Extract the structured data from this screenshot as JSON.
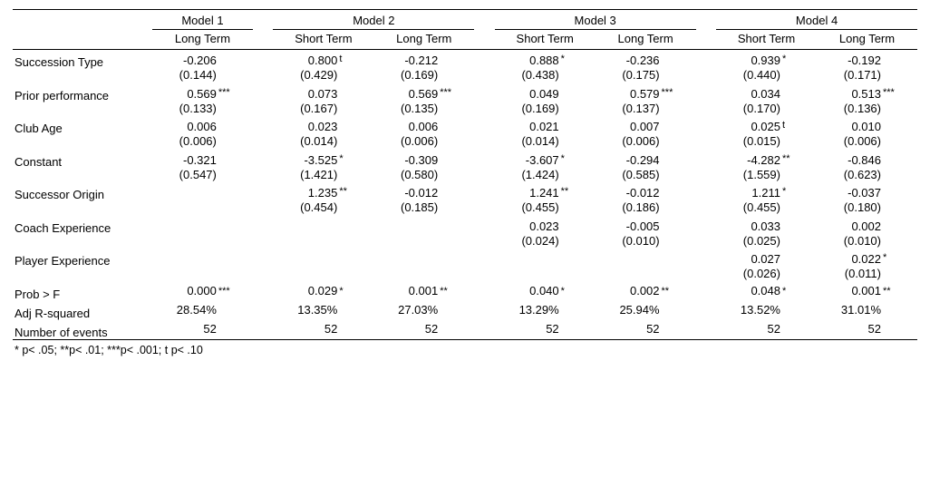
{
  "table": {
    "background_color": "#ffffff",
    "text_color": "#000000",
    "rule_color": "#000000",
    "font_family": "Arial",
    "font_size_pt": 10,
    "models": [
      {
        "label": "Model 1",
        "columns": [
          "Long Term"
        ]
      },
      {
        "label": "Model 2",
        "columns": [
          "Short Term",
          "Long Term"
        ]
      },
      {
        "label": "Model 3",
        "columns": [
          "Short Term",
          "Long Term"
        ]
      },
      {
        "label": "Model 4",
        "columns": [
          "Short Term",
          "Long Term"
        ]
      }
    ],
    "col_keys": [
      "m1_lt",
      "m2_st",
      "m2_lt",
      "m3_st",
      "m3_lt",
      "m4_st",
      "m4_lt"
    ],
    "rows": [
      {
        "label": "Succession Type",
        "cells": {
          "m1_lt": {
            "v": "-0.206",
            "se": "(0.144)",
            "sig": ""
          },
          "m2_st": {
            "v": "0.800",
            "se": "(0.429)",
            "sig": "t"
          },
          "m2_lt": {
            "v": "-0.212",
            "se": "(0.169)",
            "sig": ""
          },
          "m3_st": {
            "v": "0.888",
            "se": "(0.438)",
            "sig": "*"
          },
          "m3_lt": {
            "v": "-0.236",
            "se": "(0.175)",
            "sig": ""
          },
          "m4_st": {
            "v": "0.939",
            "se": "(0.440)",
            "sig": "*"
          },
          "m4_lt": {
            "v": "-0.192",
            "se": "(0.171)",
            "sig": ""
          }
        }
      },
      {
        "label": "Prior performance",
        "cells": {
          "m1_lt": {
            "v": "0.569",
            "se": "(0.133)",
            "sig": "***"
          },
          "m2_st": {
            "v": "0.073",
            "se": "(0.167)",
            "sig": ""
          },
          "m2_lt": {
            "v": "0.569",
            "se": "(0.135)",
            "sig": "***"
          },
          "m3_st": {
            "v": "0.049",
            "se": "(0.169)",
            "sig": ""
          },
          "m3_lt": {
            "v": "0.579",
            "se": "(0.137)",
            "sig": "***"
          },
          "m4_st": {
            "v": "0.034",
            "se": "(0.170)",
            "sig": ""
          },
          "m4_lt": {
            "v": "0.513",
            "se": "(0.136)",
            "sig": "***"
          }
        }
      },
      {
        "label": "Club Age",
        "cells": {
          "m1_lt": {
            "v": "0.006",
            "se": "(0.006)",
            "sig": ""
          },
          "m2_st": {
            "v": "0.023",
            "se": "(0.014)",
            "sig": ""
          },
          "m2_lt": {
            "v": "0.006",
            "se": "(0.006)",
            "sig": ""
          },
          "m3_st": {
            "v": "0.021",
            "se": "(0.014)",
            "sig": ""
          },
          "m3_lt": {
            "v": "0.007",
            "se": "(0.006)",
            "sig": ""
          },
          "m4_st": {
            "v": "0.025",
            "se": "(0.015)",
            "sig": "t"
          },
          "m4_lt": {
            "v": "0.010",
            "se": "(0.006)",
            "sig": ""
          }
        }
      },
      {
        "label": "Constant",
        "cells": {
          "m1_lt": {
            "v": "-0.321",
            "se": "(0.547)",
            "sig": ""
          },
          "m2_st": {
            "v": "-3.525",
            "se": "(1.421)",
            "sig": "*"
          },
          "m2_lt": {
            "v": "-0.309",
            "se": "(0.580)",
            "sig": ""
          },
          "m3_st": {
            "v": "-3.607",
            "se": "(1.424)",
            "sig": "*"
          },
          "m3_lt": {
            "v": "-0.294",
            "se": "(0.585)",
            "sig": ""
          },
          "m4_st": {
            "v": "-4.282",
            "se": "(1.559)",
            "sig": "**"
          },
          "m4_lt": {
            "v": "-0.846",
            "se": "(0.623)",
            "sig": ""
          }
        }
      },
      {
        "label": "Successor Origin",
        "cells": {
          "m1_lt": null,
          "m2_st": {
            "v": "1.235",
            "se": "(0.454)",
            "sig": "**"
          },
          "m2_lt": {
            "v": "-0.012",
            "se": "(0.185)",
            "sig": ""
          },
          "m3_st": {
            "v": "1.241",
            "se": "(0.455)",
            "sig": "**"
          },
          "m3_lt": {
            "v": "-0.012",
            "se": "(0.186)",
            "sig": ""
          },
          "m4_st": {
            "v": "1.211",
            "se": "(0.455)",
            "sig": "*"
          },
          "m4_lt": {
            "v": "-0.037",
            "se": "(0.180)",
            "sig": ""
          }
        }
      },
      {
        "label": "Coach Experience",
        "cells": {
          "m1_lt": null,
          "m2_st": null,
          "m2_lt": null,
          "m3_st": {
            "v": "0.023",
            "se": "(0.024)",
            "sig": ""
          },
          "m3_lt": {
            "v": "-0.005",
            "se": "(0.010)",
            "sig": ""
          },
          "m4_st": {
            "v": "0.033",
            "se": "(0.025)",
            "sig": ""
          },
          "m4_lt": {
            "v": "0.002",
            "se": "(0.010)",
            "sig": ""
          }
        }
      },
      {
        "label": "Player Experience",
        "cells": {
          "m1_lt": null,
          "m2_st": null,
          "m2_lt": null,
          "m3_st": null,
          "m3_lt": null,
          "m4_st": {
            "v": "0.027",
            "se": "(0.026)",
            "sig": ""
          },
          "m4_lt": {
            "v": "0.022",
            "se": "(0.011)",
            "sig": "*"
          }
        }
      }
    ],
    "stats": [
      {
        "label": "Prob > F",
        "cells": {
          "m1_lt": {
            "v": "0.000",
            "sig": "***"
          },
          "m2_st": {
            "v": "0.029",
            "sig": "*"
          },
          "m2_lt": {
            "v": "0.001",
            "sig": "**"
          },
          "m3_st": {
            "v": "0.040",
            "sig": "*"
          },
          "m3_lt": {
            "v": "0.002",
            "sig": "**"
          },
          "m4_st": {
            "v": "0.048",
            "sig": "*"
          },
          "m4_lt": {
            "v": "0.001",
            "sig": "**"
          }
        }
      },
      {
        "label": "Adj R-squared",
        "cells": {
          "m1_lt": {
            "v": "28.54%"
          },
          "m2_st": {
            "v": "13.35%"
          },
          "m2_lt": {
            "v": "27.03%"
          },
          "m3_st": {
            "v": "13.29%"
          },
          "m3_lt": {
            "v": "25.94%"
          },
          "m4_st": {
            "v": "13.52%"
          },
          "m4_lt": {
            "v": "31.01%"
          }
        }
      },
      {
        "label": "Number of events",
        "cells": {
          "m1_lt": {
            "v": "52"
          },
          "m2_st": {
            "v": "52"
          },
          "m2_lt": {
            "v": "52"
          },
          "m3_st": {
            "v": "52"
          },
          "m3_lt": {
            "v": "52"
          },
          "m4_st": {
            "v": "52"
          },
          "m4_lt": {
            "v": "52"
          }
        }
      }
    ],
    "footnote": "* p< .05; **p< .01; ***p< .001; t p< .10"
  }
}
